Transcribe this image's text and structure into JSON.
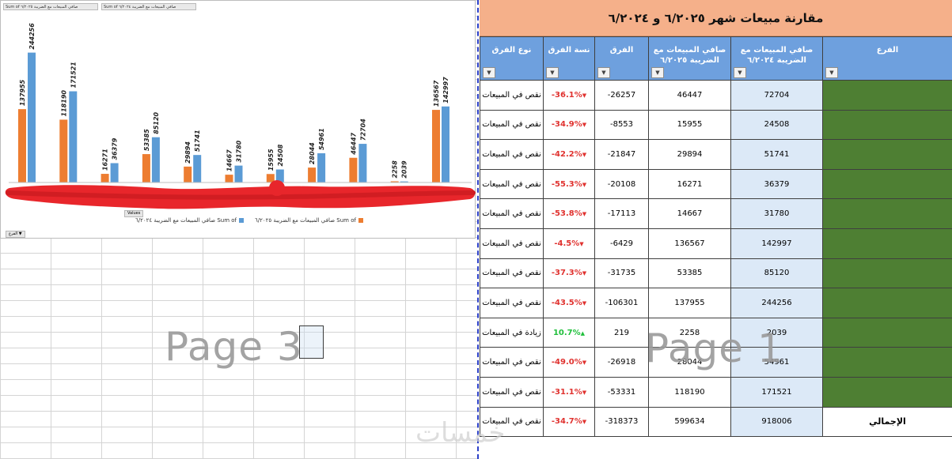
{
  "table": {
    "title": "مقارنة مبيعات شهر ٦/٢٠٢٥ و ٦/٢٠٢٤",
    "headers": {
      "type": "نوع الفرق",
      "pct": "نسة الفرق",
      "diff": "الفرق",
      "sales2025": "صافي المبيعات مع الضريبة ٦/٢٠٢٥",
      "sales2024": "صافي المبيعات مع الضريبة ٦/٢٠٢٤",
      "branch": "الفرع"
    },
    "rows": [
      {
        "type": "نقص في المبيعات",
        "pct": "-36.1%",
        "dir": "down",
        "diff": "-26257",
        "s2025": "46447",
        "s2024": "72704",
        "branch": ""
      },
      {
        "type": "نقص في المبيعات",
        "pct": "-34.9%",
        "dir": "down",
        "diff": "-8553",
        "s2025": "15955",
        "s2024": "24508",
        "branch": ""
      },
      {
        "type": "نقص في المبيعات",
        "pct": "-42.2%",
        "dir": "down",
        "diff": "-21847",
        "s2025": "29894",
        "s2024": "51741",
        "branch": ""
      },
      {
        "type": "نقص في المبيعات",
        "pct": "-55.3%",
        "dir": "down",
        "diff": "-20108",
        "s2025": "16271",
        "s2024": "36379",
        "branch": ""
      },
      {
        "type": "نقص في المبيعات",
        "pct": "-53.8%",
        "dir": "down",
        "diff": "-17113",
        "s2025": "14667",
        "s2024": "31780",
        "branch": ""
      },
      {
        "type": "نقص في المبيعات",
        "pct": "-4.5%",
        "dir": "down",
        "diff": "-6429",
        "s2025": "136567",
        "s2024": "142997",
        "branch": ""
      },
      {
        "type": "نقص في المبيعات",
        "pct": "-37.3%",
        "dir": "down",
        "diff": "-31735",
        "s2025": "53385",
        "s2024": "85120",
        "branch": ""
      },
      {
        "type": "نقص في المبيعات",
        "pct": "-43.5%",
        "dir": "down",
        "diff": "-106301",
        "s2025": "137955",
        "s2024": "244256",
        "branch": ""
      },
      {
        "type": "زيادة في المبيعات",
        "pct": "10.7%",
        "dir": "up",
        "diff": "219",
        "s2025": "2258",
        "s2024": "2039",
        "branch": ""
      },
      {
        "type": "نقص في المبيعات",
        "pct": "-49.0%",
        "dir": "down",
        "diff": "-26918",
        "s2025": "28044",
        "s2024": "54961",
        "branch": ""
      },
      {
        "type": "نقص في المبيعات",
        "pct": "-31.1%",
        "dir": "down",
        "diff": "-53331",
        "s2025": "118190",
        "s2024": "171521",
        "branch": ""
      }
    ],
    "total": {
      "type": "نقص في المبيعات",
      "pct": "-34.7%",
      "dir": "down",
      "diff": "-318373",
      "s2025": "599634",
      "s2024": "918006",
      "branch": "الإجمالي"
    }
  },
  "chart_buttons": {
    "top1": "Sum of صافي المبيعات مع الضريبة ٦/٢٠٢٤",
    "top2": "Sum of صافي المبيعات مع الضريبة ٦/٢٠٢٥",
    "values": "Values",
    "corner": "الفرع ▼"
  },
  "chart_data": {
    "type": "bar",
    "categories": [
      "",
      "",
      "",
      "",
      "",
      "",
      "",
      "",
      "",
      "",
      ""
    ],
    "series": [
      {
        "name": "Sum of صافي المبيعات مع الضريبة ٦/٢٠٢٥",
        "color": "#ed7d31",
        "values": [
          137955,
          118190,
          16271,
          53385,
          29894,
          14667,
          15955,
          28044,
          46447,
          2258,
          136567
        ]
      },
      {
        "name": "Sum of صافي المبيعات مع الضريبة ٦/٢٠٢٤",
        "color": "#5b9bd5",
        "values": [
          244256,
          171521,
          36379,
          85120,
          51741,
          31780,
          24508,
          54961,
          72704,
          2039,
          142997
        ]
      }
    ],
    "ylim": [
      0,
      260000
    ],
    "legend": "bottom",
    "grid": false
  },
  "watermarks": {
    "left": "Page 3",
    "right": "Page 1",
    "logo": "خمسات"
  },
  "colors": {
    "title_bg": "#f5b08a",
    "header_bg": "#6ea0de",
    "branch_bg": "#4e7f33",
    "value_bg": "#dce9f7",
    "negative": "#e0322f",
    "positive": "#1fbf3b"
  }
}
